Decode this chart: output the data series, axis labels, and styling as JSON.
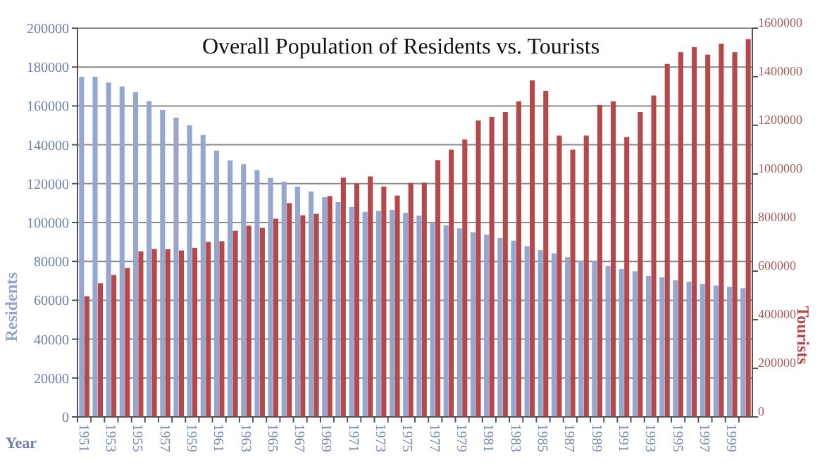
{
  "chart_data": {
    "type": "bar",
    "title": "Overall Population of Residents vs. Tourists",
    "xlabel": "Year",
    "ylabel": "Residents",
    "y2label": "Tourists",
    "categories": [
      "1951",
      null,
      "1953",
      null,
      "1955",
      null,
      "1957",
      null,
      "1959",
      null,
      "1961",
      null,
      "1963",
      null,
      "1965",
      null,
      "1967",
      null,
      "1969",
      null,
      "1971",
      null,
      "1973",
      null,
      "1975",
      null,
      "1977",
      null,
      "1979",
      null,
      "1981",
      null,
      "1983",
      null,
      "1985",
      null,
      "1987",
      null,
      "1989",
      null,
      "1991",
      null,
      "1993",
      null,
      "1995",
      null,
      "1997",
      null,
      "1999",
      null
    ],
    "series": [
      {
        "color": "#95a6cf",
        "values": [
          175000,
          175000,
          172000,
          170000,
          167000,
          162500,
          158000,
          154000,
          150000,
          145000,
          137000,
          132000,
          130000,
          127000,
          123000,
          121000,
          118500,
          116000,
          113000,
          110500,
          108000,
          105500,
          106000,
          106500,
          105000,
          103500,
          100000,
          98600,
          97000,
          95000,
          93800,
          92000,
          90700,
          87800,
          85800,
          84100,
          82200,
          80200,
          80200,
          77600,
          76100,
          74900,
          72500,
          71800,
          70300,
          69600,
          68400,
          67600,
          66900,
          66200
        ]
      },
      {
        "color": "#b5484a",
        "axis": "y2",
        "values": [
          497000,
          550000,
          584000,
          613000,
          681000,
          691000,
          690000,
          685000,
          696000,
          720000,
          723000,
          766000,
          787000,
          778000,
          816000,
          880000,
          830000,
          836000,
          909000,
          985000,
          961000,
          990000,
          948000,
          911000,
          963000,
          964000,
          1057000,
          1100000,
          1142000,
          1220000,
          1235000,
          1255000,
          1299000,
          1385000,
          1342000,
          1158000,
          1100000,
          1158000,
          1284000,
          1299000,
          1152000,
          1255000,
          1323000,
          1453000,
          1501000,
          1522000,
          1491000,
          1536000,
          1501000,
          1555000
        ]
      }
    ],
    "ylim": [
      0,
      200000
    ],
    "yticks": [
      0,
      20000,
      40000,
      60000,
      80000,
      100000,
      120000,
      140000,
      160000,
      180000,
      200000
    ],
    "y2lim": [
      0,
      1600000
    ],
    "y2ticks": [
      0,
      200000,
      400000,
      600000,
      800000,
      1000000,
      1200000,
      1400000,
      1600000
    ],
    "grid": "y"
  }
}
